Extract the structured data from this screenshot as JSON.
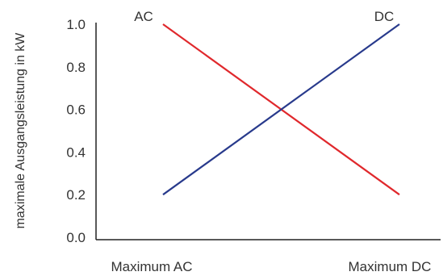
{
  "chart_data": {
    "type": "line",
    "title": "",
    "xlabel": "",
    "ylabel": "maximale Ausgangsleistung in kW",
    "categories": [
      "Maximum AC",
      "Maximum DC"
    ],
    "ylim": [
      0,
      1.0
    ],
    "y_ticks": [
      "0.0",
      "0.2",
      "0.4",
      "0.6",
      "0.8",
      "1.0"
    ],
    "grid": false,
    "legend": "inline labels at line ends",
    "series": [
      {
        "name": "AC",
        "color": "#e0282c",
        "values": [
          1.0,
          0.2
        ]
      },
      {
        "name": "DC",
        "color": "#283a8c",
        "values": [
          0.2,
          1.0
        ]
      }
    ]
  }
}
